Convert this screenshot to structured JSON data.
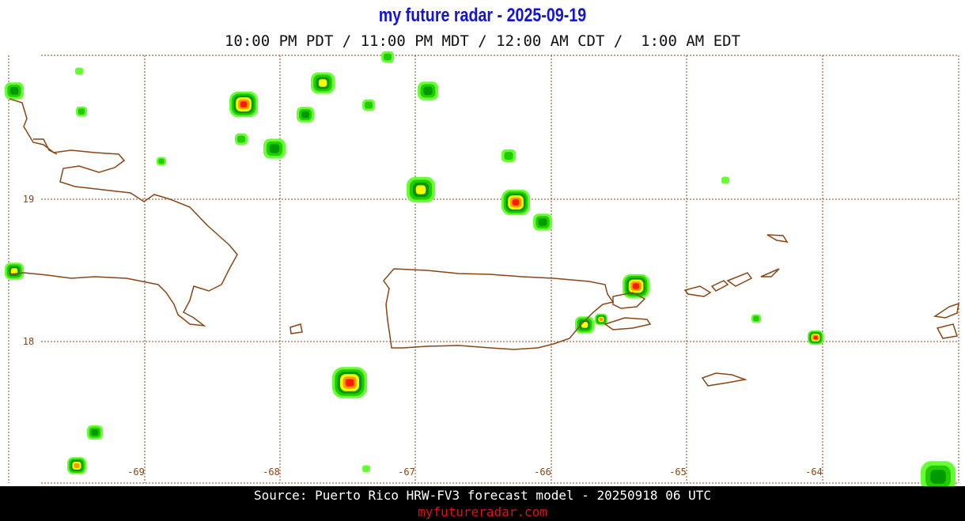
{
  "header": {
    "title": "my future radar - 2025-09-19",
    "times": "10:00 PM PDT / 11:00 PM MDT / 12:00 AM CDT /  1:00 AM EDT"
  },
  "map": {
    "lat_labels": [
      "19",
      "18"
    ],
    "lon_labels": [
      "-69",
      "-68",
      "-67",
      "-66",
      "-65",
      "-64"
    ]
  },
  "footer": {
    "source": "Source: Puerto Rico HRW-FV3 forecast model - 20250918 06 UTC",
    "url": "myfutureradar.com"
  }
}
